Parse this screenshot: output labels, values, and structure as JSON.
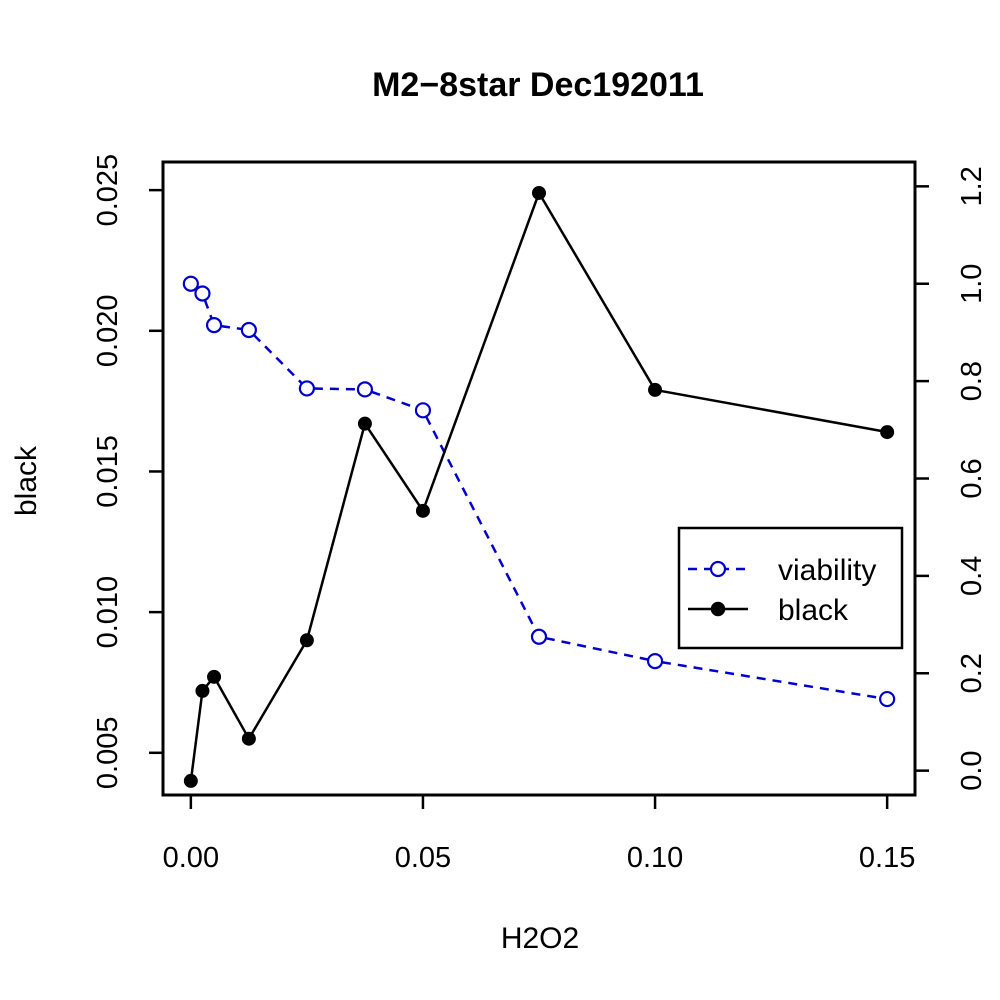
{
  "chart_data": {
    "type": "line",
    "title": "M2−8star Dec192011",
    "xlabel": "H2O2",
    "ylabel_left": "black",
    "ylabel_right": "",
    "xlim": [
      -0.006,
      0.156
    ],
    "ylim_left": [
      0.0035,
      0.026
    ],
    "ylim_right": [
      -0.05,
      1.25
    ],
    "x_ticks": [
      0.0,
      0.05,
      0.1,
      0.15
    ],
    "x_tick_labels": [
      "0.00",
      "0.05",
      "0.10",
      "0.15"
    ],
    "y_left_ticks": [
      0.005,
      0.01,
      0.015,
      0.02,
      0.025
    ],
    "y_left_tick_labels": [
      "0.005",
      "0.010",
      "0.015",
      "0.020",
      "0.025"
    ],
    "y_right_ticks": [
      0.0,
      0.2,
      0.4,
      0.6,
      0.8,
      1.0,
      1.2
    ],
    "y_right_tick_labels": [
      "0.0",
      "0.2",
      "0.4",
      "0.6",
      "0.8",
      "1.0",
      "1.2"
    ],
    "x": [
      0,
      0.0025,
      0.005,
      0.0125,
      0.025,
      0.0375,
      0.05,
      0.075,
      0.1,
      0.15
    ],
    "series": [
      {
        "name": "viability",
        "axis": "right",
        "color": "#0000cc",
        "line_style": "dashed",
        "marker": "open-circle",
        "values": [
          1.0,
          0.98,
          0.915,
          0.905,
          0.785,
          0.783,
          0.74,
          0.275,
          0.225,
          0.147
        ]
      },
      {
        "name": "black",
        "axis": "left",
        "color": "#000000",
        "line_style": "solid",
        "marker": "filled-circle",
        "values": [
          0.004,
          0.0072,
          0.0077,
          0.0055,
          0.009,
          0.0167,
          0.0136,
          0.0249,
          0.0179,
          0.0164
        ]
      }
    ],
    "legend": {
      "position": "right",
      "entries": [
        "viability",
        "black"
      ]
    },
    "grid": false
  }
}
